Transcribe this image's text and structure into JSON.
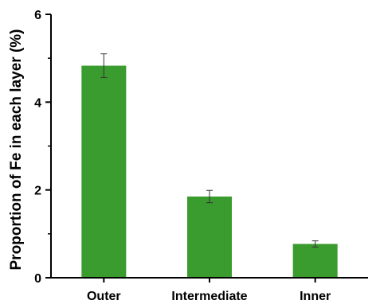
{
  "chart_data": {
    "type": "bar",
    "title": "",
    "xlabel": "",
    "ylabel": "Proportion of Fe in each layer (%)",
    "categories": [
      "Outer",
      "Intermediate",
      "Inner"
    ],
    "series": [
      {
        "values": [
          4.83,
          1.85,
          0.77
        ],
        "errors": [
          0.27,
          0.14,
          0.07
        ]
      }
    ],
    "ylim": [
      0,
      6
    ],
    "yticks": [
      0,
      2,
      4,
      6
    ],
    "ytick_labels": [
      "0",
      "2",
      "4",
      "6"
    ],
    "grid": false,
    "legend": "none",
    "colors": {
      "bar": "#3a9b2e",
      "error_bar": "#333333",
      "axis": "#000000"
    }
  }
}
